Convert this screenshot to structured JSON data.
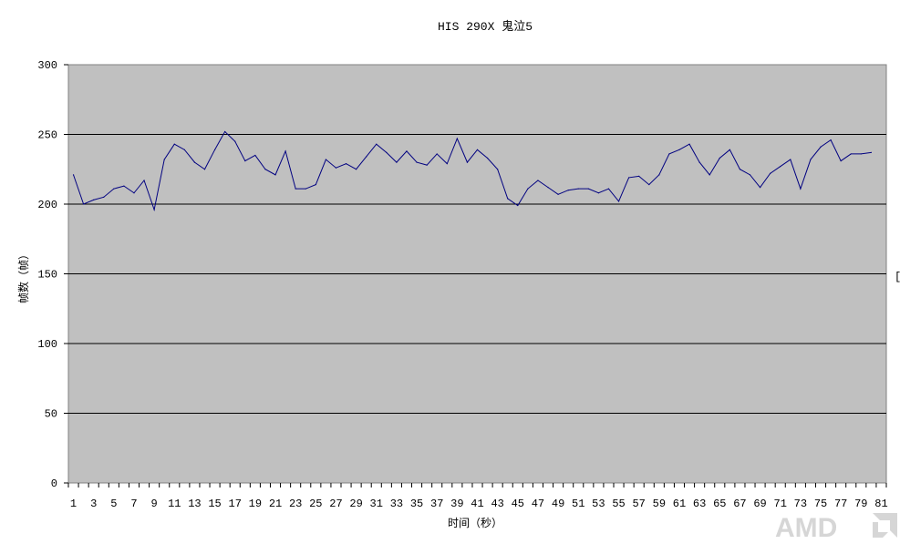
{
  "chart_data": {
    "type": "line",
    "title": "HIS 290X 鬼泣5",
    "xlabel": "时间（秒）",
    "ylabel": "帧数（帧）",
    "ylim": [
      0,
      300
    ],
    "yticks": [
      0,
      50,
      100,
      150,
      200,
      250,
      300
    ],
    "xlim": [
      1,
      81
    ],
    "xticks": [
      1,
      3,
      5,
      7,
      9,
      11,
      13,
      15,
      17,
      19,
      21,
      23,
      25,
      27,
      29,
      31,
      33,
      35,
      37,
      39,
      41,
      43,
      45,
      47,
      49,
      51,
      53,
      55,
      57,
      59,
      61,
      63,
      65,
      67,
      69,
      71,
      73,
      75,
      77,
      79,
      81
    ],
    "grid": true,
    "plot_background": "#c0c0c0",
    "line_color": "#000080",
    "legend_marker": "[",
    "series": [
      {
        "values": [
          221,
          200,
          203,
          205,
          211,
          213,
          208,
          217,
          196,
          232,
          243,
          239,
          230,
          225,
          239,
          252,
          245,
          231,
          235,
          225,
          221,
          238,
          211,
          211,
          214,
          232,
          226,
          229,
          225,
          234,
          243,
          237,
          230,
          238,
          230,
          228,
          236,
          229,
          247,
          230,
          239,
          233,
          225,
          204,
          199,
          211,
          217,
          212,
          207,
          210,
          211,
          211,
          208,
          211,
          202,
          219,
          220,
          214,
          221,
          236,
          239,
          243,
          230,
          221,
          233,
          239,
          225,
          221,
          212,
          222,
          227,
          232,
          211,
          232,
          241,
          246,
          231,
          236,
          236,
          237
        ]
      }
    ]
  },
  "brand": {
    "logo_text": "AMD"
  }
}
